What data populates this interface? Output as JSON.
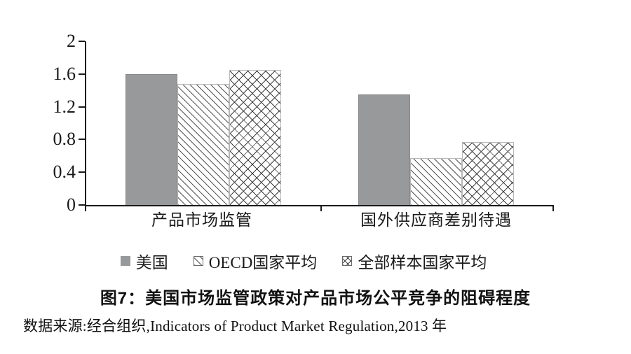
{
  "chart_data": {
    "type": "bar",
    "title": "图7：美国市场监管政策对产品市场公平竞争的阻碍程度",
    "source_note": "数据来源:经合组织,Indicators of Product Market Regulation,2013 年",
    "categories": [
      "产品市场监管",
      "国外供应商差别待遇"
    ],
    "series": [
      {
        "name": "美国",
        "style": "solid",
        "values": [
          1.6,
          1.35
        ]
      },
      {
        "name": "OECD国家平均",
        "style": "hatch",
        "values": [
          1.48,
          0.57
        ]
      },
      {
        "name": "全部样本国家平均",
        "style": "cross",
        "values": [
          1.65,
          0.77
        ]
      }
    ],
    "ylim": [
      0,
      2
    ],
    "yticks": [
      0,
      0.4,
      0.8,
      1.2,
      1.6,
      2
    ],
    "ytick_labels": [
      "0",
      "0.4",
      "0.8",
      "1.2",
      "1.6",
      "2"
    ],
    "xlabel": "",
    "ylabel": "",
    "legend_position": "bottom",
    "grid": false,
    "colors": {
      "us_bar": "#98999b",
      "axis": "#1a1a1a",
      "hatch_line": "#565656",
      "cross_line": "#3f3f3f",
      "background": "#ffffff"
    }
  }
}
